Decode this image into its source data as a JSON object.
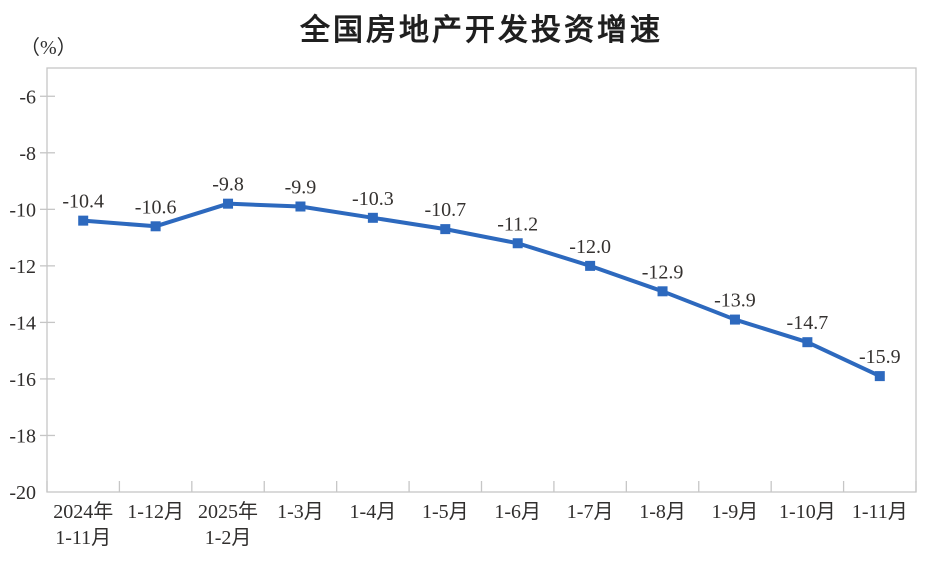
{
  "chart_data": {
    "type": "line",
    "title": "全国房地产开发投资增速",
    "ylabel": "（%）",
    "xlabel": "",
    "categories": [
      [
        "2024年",
        "1-11月"
      ],
      [
        "1-12月"
      ],
      [
        "2025年",
        "1-2月"
      ],
      [
        "1-3月"
      ],
      [
        "1-4月"
      ],
      [
        "1-5月"
      ],
      [
        "1-6月"
      ],
      [
        "1-7月"
      ],
      [
        "1-8月"
      ],
      [
        "1-9月"
      ],
      [
        "1-10月"
      ],
      [
        "1-11月"
      ]
    ],
    "values": [
      -10.4,
      -10.6,
      -9.8,
      -9.9,
      -10.3,
      -10.7,
      -11.2,
      -12.0,
      -12.9,
      -13.9,
      -14.7,
      -15.9
    ],
    "data_labels": [
      "-10.4",
      "-10.6",
      "-9.8",
      "-9.9",
      "-10.3",
      "-10.7",
      "-11.2",
      "-12.0",
      "-12.9",
      "-13.9",
      "-14.7",
      "-15.9"
    ],
    "y_ticks": [
      -6,
      -8,
      -10,
      -12,
      -14,
      -16,
      -18,
      -20
    ],
    "y_tick_labels": [
      "-6",
      "-8",
      "-10",
      "-12",
      "-14",
      "-16",
      "-18",
      "-20"
    ],
    "ylim": [
      -20,
      -5
    ],
    "grid": false,
    "legend_position": "none",
    "marker_shape": "square",
    "colors": {
      "line": "#2d69be",
      "marker": "#2d69be",
      "axis": "#c6c6c6",
      "text": "#302e2d",
      "title": "#1f1f1f"
    }
  }
}
